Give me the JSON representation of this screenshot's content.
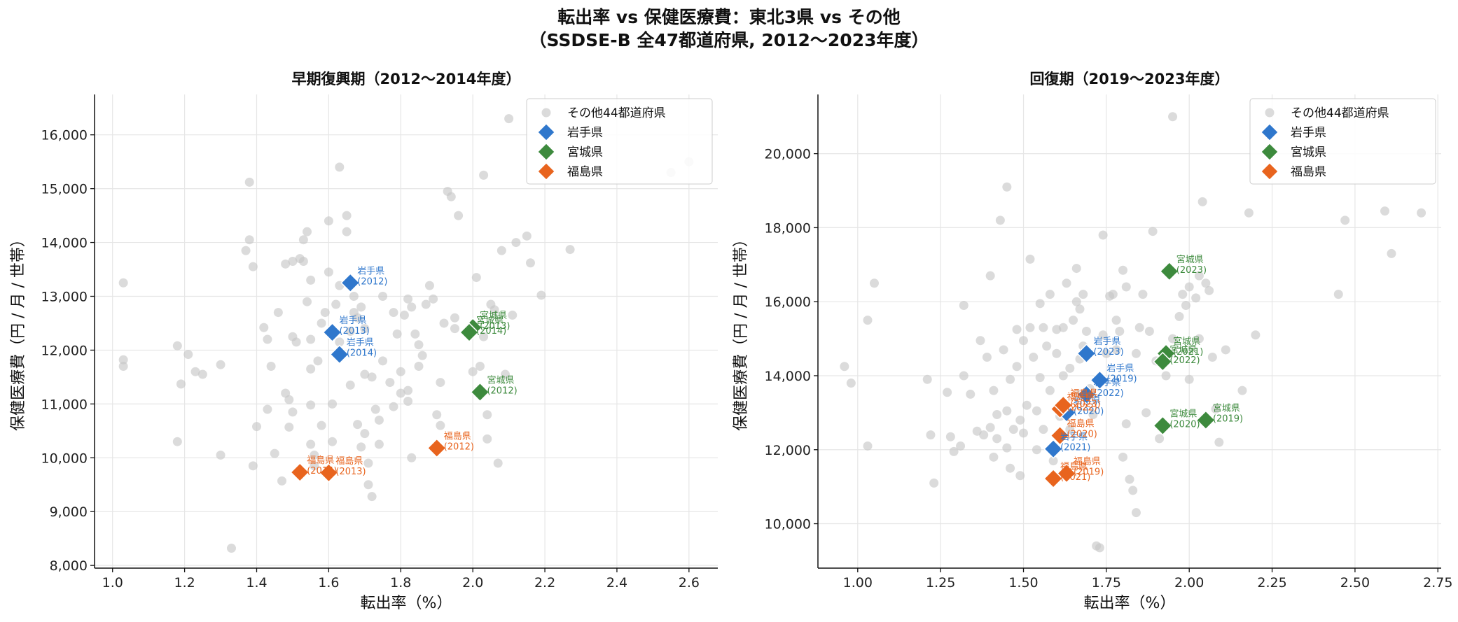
{
  "suptitle_line1": "転出率 vs 保健医療費：東北3県 vs その他",
  "suptitle_line2": "（SSDSE-B 全47都道府県, 2012〜2023年度）",
  "colors": {
    "other": "#c8c8c8",
    "岩手県": "#2f77cc",
    "宮城県": "#3d8a3d",
    "福島県": "#e8641e"
  },
  "chart_data": [
    {
      "type": "scatter",
      "title": "早期復興期（2012〜2014年度）",
      "xlabel": "転出率（%）",
      "ylabel": "保健医療費（円 / 月 / 世帯）",
      "xlim": [
        0.95,
        2.68
      ],
      "ylim": [
        7950,
        16750
      ],
      "xticks": [
        1.0,
        1.2,
        1.4,
        1.6,
        1.8,
        2.0,
        2.2,
        2.4,
        2.6
      ],
      "xtick_labels": [
        "1.0",
        "1.2",
        "1.4",
        "1.6",
        "1.8",
        "2.0",
        "2.2",
        "2.4",
        "2.6"
      ],
      "yticks": [
        8000,
        9000,
        10000,
        11000,
        12000,
        13000,
        14000,
        15000,
        16000
      ],
      "ytick_labels": [
        "8,000",
        "9,000",
        "10,000",
        "11,000",
        "12,000",
        "13,000",
        "14,000",
        "15,000",
        "16,000"
      ],
      "grid": true,
      "legend_position": "top-right",
      "legend": [
        "その他44都道府県",
        "岩手県",
        "宮城県",
        "福島県"
      ],
      "other_points": [
        [
          1.03,
          13250
        ],
        [
          1.03,
          11820
        ],
        [
          1.03,
          11700
        ],
        [
          1.18,
          12080
        ],
        [
          1.18,
          10300
        ],
        [
          1.19,
          11370
        ],
        [
          1.21,
          11920
        ],
        [
          1.23,
          11600
        ],
        [
          1.25,
          11550
        ],
        [
          1.3,
          11730
        ],
        [
          1.3,
          10050
        ],
        [
          1.33,
          8320
        ],
        [
          1.37,
          13850
        ],
        [
          1.38,
          14050
        ],
        [
          1.38,
          15120
        ],
        [
          1.39,
          13550
        ],
        [
          1.39,
          9850
        ],
        [
          1.4,
          10580
        ],
        [
          1.42,
          12420
        ],
        [
          1.43,
          12200
        ],
        [
          1.43,
          10900
        ],
        [
          1.44,
          11700
        ],
        [
          1.45,
          10080
        ],
        [
          1.46,
          12700
        ],
        [
          1.47,
          9570
        ],
        [
          1.48,
          13600
        ],
        [
          1.49,
          11080
        ],
        [
          1.49,
          10570
        ],
        [
          1.48,
          11200
        ],
        [
          1.5,
          10850
        ],
        [
          1.5,
          12250
        ],
        [
          1.5,
          13650
        ],
        [
          1.51,
          12150
        ],
        [
          1.52,
          13700
        ],
        [
          1.53,
          13650
        ],
        [
          1.53,
          14050
        ],
        [
          1.54,
          14200
        ],
        [
          1.54,
          12900
        ],
        [
          1.55,
          13300
        ],
        [
          1.55,
          12200
        ],
        [
          1.55,
          11650
        ],
        [
          1.55,
          10980
        ],
        [
          1.55,
          10250
        ],
        [
          1.56,
          10050
        ],
        [
          1.56,
          9850
        ],
        [
          1.57,
          11800
        ],
        [
          1.58,
          12500
        ],
        [
          1.58,
          10600
        ],
        [
          1.59,
          12700
        ],
        [
          1.6,
          14400
        ],
        [
          1.6,
          13450
        ],
        [
          1.61,
          11000
        ],
        [
          1.61,
          10300
        ],
        [
          1.62,
          12850
        ],
        [
          1.63,
          15400
        ],
        [
          1.63,
          13200
        ],
        [
          1.63,
          12150
        ],
        [
          1.65,
          14500
        ],
        [
          1.65,
          14200
        ],
        [
          1.66,
          12350
        ],
        [
          1.66,
          11350
        ],
        [
          1.67,
          13000
        ],
        [
          1.67,
          12700
        ],
        [
          1.68,
          12600
        ],
        [
          1.68,
          10620
        ],
        [
          1.69,
          12800
        ],
        [
          1.69,
          10200
        ],
        [
          1.7,
          12400
        ],
        [
          1.7,
          11550
        ],
        [
          1.7,
          10450
        ],
        [
          1.71,
          9500
        ],
        [
          1.71,
          9900
        ],
        [
          1.72,
          11500
        ],
        [
          1.72,
          9280
        ],
        [
          1.73,
          10900
        ],
        [
          1.74,
          10250
        ],
        [
          1.74,
          10700
        ],
        [
          1.75,
          11800
        ],
        [
          1.75,
          13000
        ],
        [
          1.77,
          11400
        ],
        [
          1.78,
          10950
        ],
        [
          1.78,
          12700
        ],
        [
          1.79,
          12300
        ],
        [
          1.8,
          11600
        ],
        [
          1.8,
          11200
        ],
        [
          1.81,
          12650
        ],
        [
          1.82,
          11250
        ],
        [
          1.82,
          12950
        ],
        [
          1.82,
          11050
        ],
        [
          1.83,
          12800
        ],
        [
          1.83,
          10000
        ],
        [
          1.84,
          12300
        ],
        [
          1.85,
          11700
        ],
        [
          1.85,
          12100
        ],
        [
          1.86,
          11900
        ],
        [
          1.87,
          12850
        ],
        [
          1.88,
          13200
        ],
        [
          1.89,
          12950
        ],
        [
          1.9,
          10800
        ],
        [
          1.91,
          11400
        ],
        [
          1.91,
          10600
        ],
        [
          1.92,
          12500
        ],
        [
          1.93,
          14950
        ],
        [
          1.94,
          14850
        ],
        [
          1.95,
          12600
        ],
        [
          1.95,
          12400
        ],
        [
          1.96,
          14500
        ],
        [
          2.0,
          11600
        ],
        [
          2.01,
          13350
        ],
        [
          2.02,
          11700
        ],
        [
          2.03,
          12250
        ],
        [
          2.03,
          15250
        ],
        [
          2.04,
          10350
        ],
        [
          2.04,
          10800
        ],
        [
          2.05,
          12850
        ],
        [
          2.06,
          12750
        ],
        [
          2.07,
          9900
        ],
        [
          2.08,
          13850
        ],
        [
          2.09,
          11550
        ],
        [
          2.1,
          16300
        ],
        [
          2.11,
          12650
        ],
        [
          2.12,
          14000
        ],
        [
          2.15,
          14120
        ],
        [
          2.16,
          13620
        ],
        [
          2.19,
          13020
        ],
        [
          2.27,
          13870
        ],
        [
          2.55,
          15300
        ],
        [
          2.6,
          15500
        ]
      ],
      "highlight": [
        {
          "pref": "岩手県",
          "year": "(2012)",
          "x": 1.66,
          "y": 13250
        },
        {
          "pref": "岩手県",
          "year": "(2013)",
          "x": 1.61,
          "y": 12330
        },
        {
          "pref": "岩手県",
          "year": "(2014)",
          "x": 1.63,
          "y": 11920
        },
        {
          "pref": "宮城県",
          "year": "(2012)",
          "x": 2.02,
          "y": 11220
        },
        {
          "pref": "宮城県",
          "year": "(2013)",
          "x": 2.0,
          "y": 12420
        },
        {
          "pref": "宮城県",
          "year": "(2014)",
          "x": 1.99,
          "y": 12330
        },
        {
          "pref": "福島県",
          "year": "(2012)",
          "x": 1.9,
          "y": 10180
        },
        {
          "pref": "福島県",
          "year": "(2013)",
          "x": 1.6,
          "y": 9720
        },
        {
          "pref": "福島県",
          "year": "(2014)",
          "x": 1.52,
          "y": 9730
        }
      ]
    },
    {
      "type": "scatter",
      "title": "回復期（2019〜2023年度）",
      "xlabel": "転出率（%）",
      "ylabel": "保健医療費（円 / 月 / 世帯）",
      "xlim": [
        0.88,
        2.76
      ],
      "ylim": [
        8800,
        21600
      ],
      "xticks": [
        1.0,
        1.25,
        1.5,
        1.75,
        2.0,
        2.25,
        2.5,
        2.75
      ],
      "xtick_labels": [
        "1.00",
        "1.25",
        "1.50",
        "1.75",
        "2.00",
        "2.25",
        "2.50",
        "2.75"
      ],
      "yticks": [
        10000,
        12000,
        14000,
        16000,
        18000,
        20000
      ],
      "ytick_labels": [
        "10,000",
        "12,000",
        "14,000",
        "16,000",
        "18,000",
        "20,000"
      ],
      "grid": true,
      "legend_position": "top-right",
      "legend": [
        "その他44都道府県",
        "岩手県",
        "宮城県",
        "福島県"
      ],
      "other_points": [
        [
          0.96,
          14250
        ],
        [
          0.98,
          13800
        ],
        [
          1.03,
          15500
        ],
        [
          1.03,
          12100
        ],
        [
          1.05,
          16500
        ],
        [
          1.21,
          13900
        ],
        [
          1.22,
          12400
        ],
        [
          1.23,
          11100
        ],
        [
          1.27,
          13550
        ],
        [
          1.28,
          12350
        ],
        [
          1.29,
          11950
        ],
        [
          1.31,
          12100
        ],
        [
          1.32,
          14000
        ],
        [
          1.32,
          15900
        ],
        [
          1.34,
          13500
        ],
        [
          1.36,
          12500
        ],
        [
          1.37,
          14950
        ],
        [
          1.38,
          12400
        ],
        [
          1.39,
          14500
        ],
        [
          1.4,
          12600
        ],
        [
          1.4,
          16700
        ],
        [
          1.41,
          11800
        ],
        [
          1.41,
          13600
        ],
        [
          1.42,
          12950
        ],
        [
          1.42,
          12300
        ],
        [
          1.43,
          18200
        ],
        [
          1.44,
          14700
        ],
        [
          1.45,
          19100
        ],
        [
          1.45,
          13050
        ],
        [
          1.45,
          12050
        ],
        [
          1.46,
          11500
        ],
        [
          1.46,
          13900
        ],
        [
          1.47,
          12550
        ],
        [
          1.48,
          15250
        ],
        [
          1.48,
          14250
        ],
        [
          1.49,
          12800
        ],
        [
          1.49,
          11300
        ],
        [
          1.5,
          12450
        ],
        [
          1.5,
          14950
        ],
        [
          1.51,
          13200
        ],
        [
          1.52,
          17150
        ],
        [
          1.52,
          15300
        ],
        [
          1.53,
          14500
        ],
        [
          1.54,
          13050
        ],
        [
          1.54,
          12000
        ],
        [
          1.55,
          13950
        ],
        [
          1.55,
          15950
        ],
        [
          1.56,
          15300
        ],
        [
          1.56,
          12550
        ],
        [
          1.57,
          14800
        ],
        [
          1.58,
          13600
        ],
        [
          1.58,
          16200
        ],
        [
          1.59,
          11700
        ],
        [
          1.6,
          15250
        ],
        [
          1.6,
          14600
        ],
        [
          1.61,
          12900
        ],
        [
          1.62,
          14000
        ],
        [
          1.62,
          15300
        ],
        [
          1.63,
          16500
        ],
        [
          1.64,
          14200
        ],
        [
          1.64,
          12550
        ],
        [
          1.65,
          15500
        ],
        [
          1.66,
          16900
        ],
        [
          1.66,
          16000
        ],
        [
          1.67,
          15800
        ],
        [
          1.67,
          14450
        ],
        [
          1.67,
          13500
        ],
        [
          1.68,
          14800
        ],
        [
          1.68,
          16200
        ],
        [
          1.69,
          15200
        ],
        [
          1.7,
          13650
        ],
        [
          1.71,
          12950
        ],
        [
          1.72,
          9400
        ],
        [
          1.73,
          9350
        ],
        [
          1.74,
          15100
        ],
        [
          1.74,
          17800
        ],
        [
          1.75,
          14600
        ],
        [
          1.76,
          16150
        ],
        [
          1.77,
          16200
        ],
        [
          1.78,
          15500
        ],
        [
          1.78,
          14700
        ],
        [
          1.79,
          15200
        ],
        [
          1.8,
          16850
        ],
        [
          1.8,
          11800
        ],
        [
          1.81,
          12700
        ],
        [
          1.81,
          16400
        ],
        [
          1.82,
          11200
        ],
        [
          1.83,
          10900
        ],
        [
          1.84,
          10300
        ],
        [
          1.84,
          14600
        ],
        [
          1.85,
          15300
        ],
        [
          1.86,
          16200
        ],
        [
          1.87,
          13000
        ],
        [
          1.88,
          15200
        ],
        [
          1.89,
          17900
        ],
        [
          1.9,
          14400
        ],
        [
          1.91,
          12300
        ],
        [
          1.93,
          14000
        ],
        [
          1.95,
          15000
        ],
        [
          1.97,
          15600
        ],
        [
          1.98,
          16200
        ],
        [
          1.99,
          15900
        ],
        [
          2.0,
          16400
        ],
        [
          2.0,
          13900
        ],
        [
          2.02,
          16100
        ],
        [
          2.03,
          15000
        ],
        [
          2.03,
          16700
        ],
        [
          2.04,
          18700
        ],
        [
          2.05,
          16500
        ],
        [
          2.06,
          16300
        ],
        [
          2.07,
          14500
        ],
        [
          2.08,
          13100
        ],
        [
          2.09,
          12200
        ],
        [
          2.11,
          14700
        ],
        [
          2.16,
          13600
        ],
        [
          2.18,
          18400
        ],
        [
          2.2,
          15100
        ],
        [
          1.95,
          21000
        ],
        [
          2.45,
          16200
        ],
        [
          2.47,
          18200
        ],
        [
          2.59,
          18450
        ],
        [
          2.61,
          17300
        ],
        [
          2.7,
          18400
        ]
      ],
      "highlight": [
        {
          "pref": "岩手県",
          "year": "(2019)",
          "x": 1.73,
          "y": 13880
        },
        {
          "pref": "岩手県",
          "year": "(2020)",
          "x": 1.63,
          "y": 13000
        },
        {
          "pref": "岩手県",
          "year": "(2021)",
          "x": 1.59,
          "y": 12020
        },
        {
          "pref": "岩手県",
          "year": "(2022)",
          "x": 1.69,
          "y": 13490
        },
        {
          "pref": "岩手県",
          "year": "(2023)",
          "x": 1.69,
          "y": 14600
        },
        {
          "pref": "宮城県",
          "year": "(2019)",
          "x": 2.05,
          "y": 12800
        },
        {
          "pref": "宮城県",
          "year": "(2020)",
          "x": 1.92,
          "y": 12650
        },
        {
          "pref": "宮城県",
          "year": "(2021)",
          "x": 1.93,
          "y": 14600
        },
        {
          "pref": "宮城県",
          "year": "(2022)",
          "x": 1.92,
          "y": 14380
        },
        {
          "pref": "宮城県",
          "year": "(2023)",
          "x": 1.94,
          "y": 16820
        },
        {
          "pref": "福島県",
          "year": "(2019)",
          "x": 1.63,
          "y": 11360
        },
        {
          "pref": "福島県",
          "year": "(2020)",
          "x": 1.61,
          "y": 12380
        },
        {
          "pref": "福島県",
          "year": "(2021)",
          "x": 1.59,
          "y": 11220
        },
        {
          "pref": "福島県",
          "year": "(2022)",
          "x": 1.61,
          "y": 13100
        },
        {
          "pref": "福島県",
          "year": "(2023)",
          "x": 1.62,
          "y": 13200
        }
      ]
    }
  ]
}
